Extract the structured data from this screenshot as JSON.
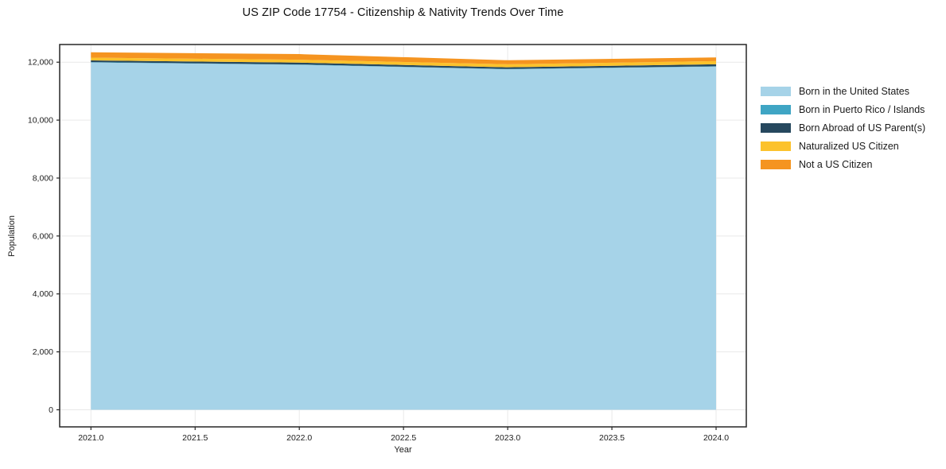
{
  "chart_data": {
    "type": "area",
    "stacked": true,
    "title": "US ZIP Code 17754 - Citizenship & Nativity Trends Over Time",
    "xlabel": "Year",
    "ylabel": "Population",
    "x": [
      2021,
      2022,
      2023,
      2024
    ],
    "series": [
      {
        "name": "Born in the United States",
        "color": "#A6D3E8",
        "values": [
          11990,
          11910,
          11755,
          11850
        ]
      },
      {
        "name": "Born in Puerto Rico / Islands",
        "color": "#3FA5C4",
        "values": [
          12,
          12,
          10,
          8
        ]
      },
      {
        "name": "Born Abroad of US Parent(s)",
        "color": "#26485E",
        "values": [
          60,
          62,
          58,
          70
        ]
      },
      {
        "name": "Naturalized US Citizen",
        "color": "#FCC22C",
        "values": [
          95,
          100,
          105,
          110
        ]
      },
      {
        "name": "Not a US Citizen",
        "color": "#F59420",
        "values": [
          185,
          195,
          140,
          125
        ]
      }
    ],
    "x_ticks": [
      {
        "v": 2021.0,
        "label": "2021.0"
      },
      {
        "v": 2021.5,
        "label": "2021.5"
      },
      {
        "v": 2022.0,
        "label": "2022.0"
      },
      {
        "v": 2022.5,
        "label": "2022.5"
      },
      {
        "v": 2023.0,
        "label": "2023.0"
      },
      {
        "v": 2023.5,
        "label": "2023.5"
      },
      {
        "v": 2024.0,
        "label": "2024.0"
      }
    ],
    "y_ticks": [
      {
        "v": 0,
        "label": "0"
      },
      {
        "v": 2000,
        "label": "2,000"
      },
      {
        "v": 4000,
        "label": "4,000"
      },
      {
        "v": 6000,
        "label": "6,000"
      },
      {
        "v": 8000,
        "label": "8,000"
      },
      {
        "v": 10000,
        "label": "10,000"
      },
      {
        "v": 12000,
        "label": "12,000"
      }
    ],
    "xlim": [
      2020.85,
      2024.145
    ],
    "ylim": [
      -590,
      12610
    ],
    "grid": true,
    "legend_position": "right",
    "frame_color": "#262626",
    "grid_color": "#e9e9e9",
    "tick_text_color": "#1c1c1c"
  }
}
